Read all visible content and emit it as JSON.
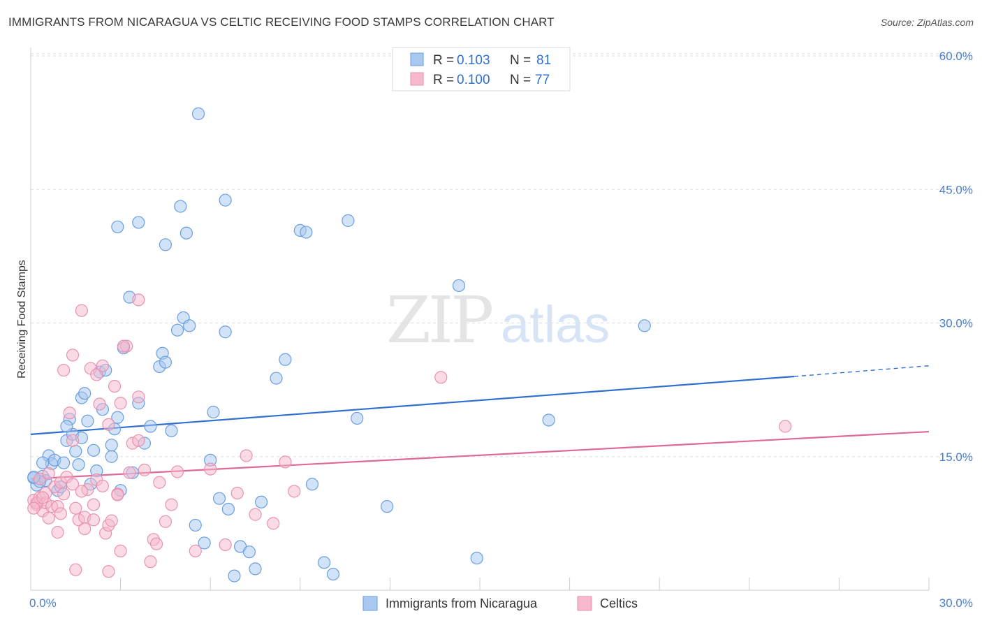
{
  "title": "IMMIGRANTS FROM NICARAGUA VS CELTIC RECEIVING FOOD STAMPS CORRELATION CHART",
  "source": "Source: ZipAtlas.com",
  "watermark": {
    "zip": "ZIP",
    "atlas": "atlas"
  },
  "colors": {
    "blue_fill": "#a8c8f0",
    "blue_stroke": "#6a9ee0",
    "blue_line": "#2f6fd0",
    "pink_fill": "#f5b8cc",
    "pink_stroke": "#e892b0",
    "pink_line": "#e06898",
    "grid": "#dddddd",
    "tick_text": "#4a7fd0"
  },
  "chart_data": {
    "type": "scatter",
    "title": "IMMIGRANTS FROM NICARAGUA VS CELTIC RECEIVING FOOD STAMPS CORRELATION CHART",
    "xlabel": "",
    "ylabel": "Receiving Food Stamps",
    "xlim": [
      0,
      30
    ],
    "ylim": [
      0,
      60
    ],
    "x_tick_labels": [
      "0.0%",
      "30.0%"
    ],
    "y_ticks": [
      15,
      30,
      45,
      60
    ],
    "y_tick_labels": [
      "15.0%",
      "30.0%",
      "45.0%",
      "60.0%"
    ],
    "legend": {
      "position": "top-center",
      "entries": [
        {
          "r_label": "R =",
          "r_value": "0.103",
          "n_label": "N =",
          "n_value": "81"
        },
        {
          "r_label": "R =",
          "r_value": "0.100",
          "n_label": "N =",
          "n_value": "77"
        }
      ]
    },
    "series": [
      {
        "name": "Immigrants from Nicaragua",
        "trend": {
          "x0": 0,
          "y0": 17.5,
          "x1": 25.5,
          "y1": 24.0,
          "dash_x1": 30,
          "dash_y1": 25.2
        },
        "points": [
          [
            0.1,
            12.6
          ],
          [
            0.2,
            11.8
          ],
          [
            0.3,
            12.5
          ],
          [
            0.4,
            12.8
          ],
          [
            0.5,
            12.3
          ],
          [
            0.6,
            15.1
          ],
          [
            0.7,
            14.2
          ],
          [
            0.8,
            14.6
          ],
          [
            0.9,
            11.2
          ],
          [
            1.0,
            11.6
          ],
          [
            1.1,
            14.3
          ],
          [
            1.2,
            16.8
          ],
          [
            1.3,
            19.2
          ],
          [
            1.4,
            17.5
          ],
          [
            1.5,
            15.6
          ],
          [
            1.6,
            14.1
          ],
          [
            1.7,
            21.6
          ],
          [
            1.8,
            22.1
          ],
          [
            1.9,
            19.0
          ],
          [
            2.0,
            11.9
          ],
          [
            2.1,
            15.7
          ],
          [
            2.2,
            13.4
          ],
          [
            2.3,
            24.5
          ],
          [
            2.4,
            20.3
          ],
          [
            2.5,
            24.7
          ],
          [
            2.7,
            15.0
          ],
          [
            2.8,
            18.1
          ],
          [
            2.9,
            19.4
          ],
          [
            3.0,
            11.2
          ],
          [
            3.1,
            27.2
          ],
          [
            3.3,
            32.9
          ],
          [
            3.4,
            13.2
          ],
          [
            3.6,
            21.0
          ],
          [
            3.8,
            16.5
          ],
          [
            4.0,
            18.4
          ],
          [
            4.3,
            25.1
          ],
          [
            4.4,
            26.6
          ],
          [
            4.5,
            25.6
          ],
          [
            4.7,
            17.9
          ],
          [
            4.9,
            29.2
          ],
          [
            5.1,
            30.6
          ],
          [
            5.3,
            29.7
          ],
          [
            5.6,
            53.5
          ],
          [
            6.0,
            14.6
          ],
          [
            6.1,
            20.0
          ],
          [
            6.3,
            10.3
          ],
          [
            6.5,
            29.0
          ],
          [
            6.6,
            9.1
          ],
          [
            6.8,
            1.6
          ],
          [
            7.0,
            4.9
          ],
          [
            7.3,
            4.3
          ],
          [
            7.5,
            2.4
          ],
          [
            7.7,
            9.9
          ],
          [
            8.2,
            23.8
          ],
          [
            8.5,
            25.9
          ],
          [
            9.0,
            40.4
          ],
          [
            9.2,
            40.2
          ],
          [
            9.4,
            11.9
          ],
          [
            9.8,
            3.1
          ],
          [
            10.1,
            1.8
          ],
          [
            10.6,
            41.5
          ],
          [
            10.9,
            19.3
          ],
          [
            11.9,
            9.4
          ],
          [
            14.3,
            34.2
          ],
          [
            14.9,
            3.6
          ],
          [
            17.3,
            19.1
          ],
          [
            20.5,
            29.7
          ],
          [
            2.9,
            40.8
          ],
          [
            3.6,
            41.3
          ],
          [
            4.5,
            38.8
          ],
          [
            5.0,
            43.1
          ],
          [
            5.2,
            40.1
          ],
          [
            6.5,
            43.8
          ],
          [
            0.3,
            12.2
          ],
          [
            0.1,
            12.7
          ],
          [
            0.4,
            14.3
          ],
          [
            1.2,
            18.4
          ],
          [
            2.7,
            16.3
          ],
          [
            5.5,
            7.3
          ],
          [
            5.8,
            5.3
          ],
          [
            1.7,
            17.1
          ]
        ]
      },
      {
        "name": "Celtics",
        "trend": {
          "x0": 0,
          "y0": 12.5,
          "x1": 30,
          "y1": 17.8
        },
        "points": [
          [
            0.1,
            10.1
          ],
          [
            0.2,
            9.6
          ],
          [
            0.3,
            10.4
          ],
          [
            0.4,
            8.9
          ],
          [
            0.5,
            9.8
          ],
          [
            0.6,
            8.1
          ],
          [
            0.7,
            9.4
          ],
          [
            0.8,
            11.6
          ],
          [
            0.9,
            6.5
          ],
          [
            1.0,
            12.1
          ],
          [
            1.1,
            10.8
          ],
          [
            1.2,
            12.7
          ],
          [
            1.3,
            19.9
          ],
          [
            1.4,
            16.8
          ],
          [
            1.5,
            9.2
          ],
          [
            1.6,
            7.9
          ],
          [
            1.7,
            31.4
          ],
          [
            1.8,
            6.9
          ],
          [
            1.9,
            11.3
          ],
          [
            2.0,
            24.9
          ],
          [
            2.1,
            9.6
          ],
          [
            2.2,
            12.4
          ],
          [
            2.3,
            20.9
          ],
          [
            2.4,
            11.7
          ],
          [
            2.5,
            6.4
          ],
          [
            2.6,
            7.3
          ],
          [
            2.8,
            22.9
          ],
          [
            2.9,
            10.8
          ],
          [
            3.0,
            4.4
          ],
          [
            3.2,
            27.4
          ],
          [
            3.3,
            13.2
          ],
          [
            3.4,
            16.5
          ],
          [
            3.6,
            32.6
          ],
          [
            3.8,
            13.5
          ],
          [
            4.0,
            3.2
          ],
          [
            4.1,
            5.7
          ],
          [
            4.3,
            12.1
          ],
          [
            4.5,
            7.7
          ],
          [
            4.7,
            9.6
          ],
          [
            4.9,
            13.3
          ],
          [
            5.5,
            4.4
          ],
          [
            6.0,
            13.6
          ],
          [
            6.5,
            5.1
          ],
          [
            6.9,
            10.9
          ],
          [
            7.2,
            15.1
          ],
          [
            7.5,
            8.5
          ],
          [
            8.1,
            7.5
          ],
          [
            8.5,
            14.4
          ],
          [
            8.8,
            11.1
          ],
          [
            13.7,
            23.9
          ],
          [
            25.2,
            18.4
          ],
          [
            1.4,
            26.4
          ],
          [
            2.2,
            24.2
          ],
          [
            3.0,
            21.0
          ],
          [
            3.6,
            21.7
          ],
          [
            2.6,
            18.6
          ],
          [
            2.4,
            25.2
          ],
          [
            1.1,
            24.7
          ],
          [
            0.5,
            10.9
          ],
          [
            0.3,
            12.5
          ],
          [
            0.2,
            9.8
          ],
          [
            0.9,
            9.4
          ],
          [
            1.4,
            11.9
          ],
          [
            1.8,
            8.2
          ],
          [
            2.1,
            7.9
          ],
          [
            2.7,
            7.8
          ],
          [
            3.1,
            27.4
          ],
          [
            1.7,
            11.1
          ],
          [
            3.6,
            16.8
          ],
          [
            0.6,
            13.1
          ],
          [
            4.2,
            5.2
          ],
          [
            2.9,
            10.7
          ],
          [
            1.0,
            8.6
          ],
          [
            2.6,
            2.1
          ],
          [
            1.5,
            2.3
          ],
          [
            0.1,
            9.2
          ],
          [
            0.4,
            10.4
          ]
        ]
      }
    ]
  }
}
